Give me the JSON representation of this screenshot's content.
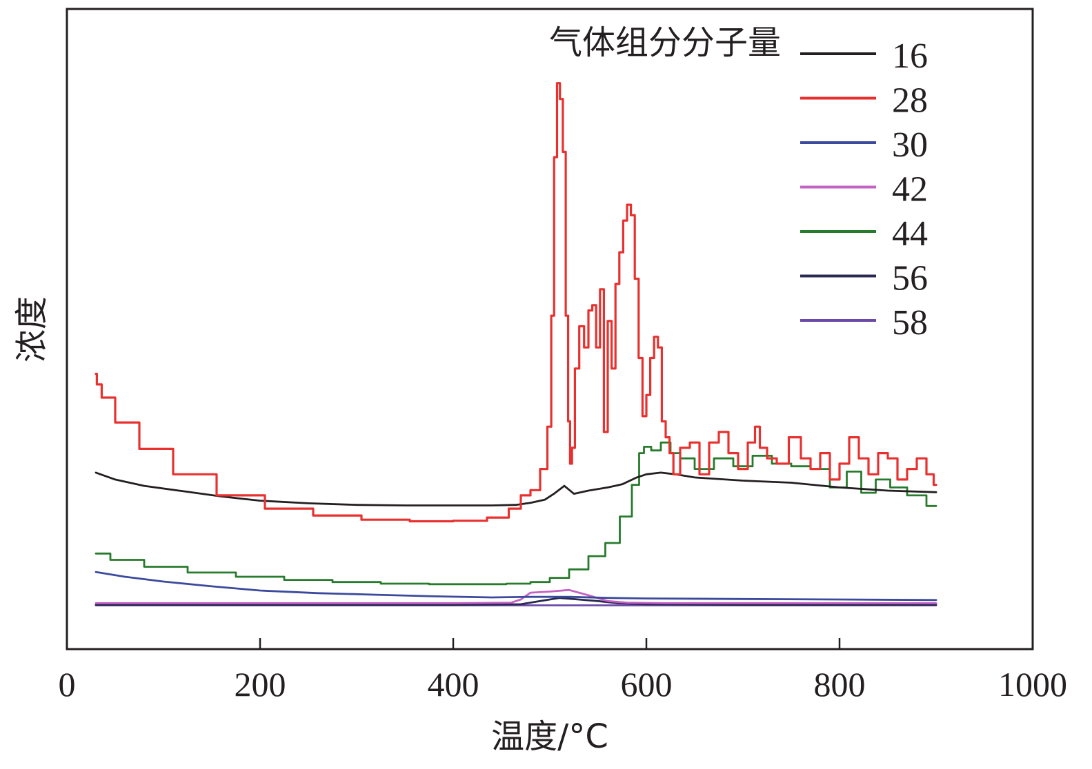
{
  "chart_data": {
    "type": "line",
    "title": "",
    "xlabel": "温度/°C",
    "ylabel": "浓度",
    "xlim": [
      0,
      1000
    ],
    "ylim": [
      0,
      100
    ],
    "xticks": [
      0,
      200,
      400,
      600,
      800,
      1000
    ],
    "xtick_labels": [
      "0",
      "200",
      "400",
      "600",
      "800",
      "1000"
    ],
    "y_tick_labels_shown": false,
    "grid": false,
    "legend": {
      "title": "气体组分分子量",
      "position": "top-right"
    },
    "series": [
      {
        "name": "16",
        "color": "#231f20",
        "x": [
          30,
          50,
          80,
          120,
          160,
          200,
          250,
          300,
          350,
          400,
          440,
          465,
          480,
          495,
          505,
          515,
          525,
          540,
          560,
          575,
          590,
          600,
          615,
          630,
          650,
          700,
          750,
          800,
          850,
          900
        ],
        "y": [
          25.3,
          24.0,
          22.8,
          21.8,
          20.8,
          20.0,
          19.5,
          19.2,
          19.1,
          19.1,
          19.1,
          19.2,
          19.6,
          20.2,
          21.4,
          22.8,
          21.3,
          21.9,
          22.5,
          23.1,
          24.4,
          25.0,
          25.3,
          25.0,
          24.4,
          23.8,
          23.4,
          22.5,
          21.9,
          21.6
        ]
      },
      {
        "name": "28",
        "color": "#e8312f",
        "x": [
          30,
          32,
          40,
          60,
          90,
          130,
          180,
          230,
          280,
          330,
          380,
          420,
          450,
          465,
          475,
          485,
          495,
          500,
          503,
          506,
          509,
          512,
          515,
          518,
          520,
          522,
          524,
          528,
          533,
          538,
          542,
          546,
          550,
          554,
          558,
          562,
          566,
          570,
          574,
          578,
          582,
          586,
          590,
          594,
          598,
          602,
          606,
          610,
          614,
          618,
          622,
          626,
          630,
          640,
          650,
          660,
          670,
          680,
          690,
          700,
          710,
          715,
          720,
          730,
          740,
          755,
          765,
          775,
          785,
          795,
          805,
          815,
          825,
          835,
          845,
          855,
          865,
          875,
          885,
          895,
          900
        ],
        "y": [
          44.0,
          42.0,
          39.5,
          34.8,
          29.8,
          25.0,
          21.0,
          18.5,
          17.2,
          16.4,
          16.1,
          16.2,
          16.8,
          18.5,
          21.0,
          22.0,
          26.0,
          34.0,
          55.0,
          85.0,
          99.0,
          96.0,
          86.0,
          55.0,
          35.0,
          27.0,
          30.0,
          45.0,
          53.0,
          49.0,
          56.0,
          57.0,
          49.0,
          60.0,
          33.0,
          54.0,
          45.0,
          61.0,
          67.0,
          73.0,
          76.0,
          74.0,
          62.0,
          47.0,
          36.0,
          40.0,
          47.0,
          51.0,
          49.0,
          35.0,
          32.0,
          29.0,
          25.0,
          30.0,
          31.0,
          25.0,
          31.0,
          33.0,
          29.0,
          26.0,
          31.0,
          34.0,
          30.0,
          28.0,
          27.0,
          32.0,
          28.0,
          26.0,
          29.0,
          24.0,
          27.0,
          32.0,
          28.0,
          25.0,
          29.0,
          28.0,
          24.0,
          26.0,
          28.0,
          25.0,
          23.0
        ]
      },
      {
        "name": "30",
        "color": "#3b4a9c",
        "x": [
          30,
          60,
          100,
          150,
          200,
          260,
          320,
          380,
          440,
          480,
          520,
          560,
          600,
          700,
          800,
          900
        ],
        "y": [
          6.5,
          5.6,
          4.7,
          3.8,
          3.0,
          2.5,
          2.2,
          1.9,
          1.7,
          1.8,
          1.8,
          1.6,
          1.5,
          1.4,
          1.3,
          1.2
        ]
      },
      {
        "name": "42",
        "color": "#c461c4",
        "x": [
          30,
          200,
          400,
          460,
          470,
          480,
          500,
          520,
          540,
          560,
          580,
          620,
          700,
          800,
          900
        ],
        "y": [
          0.6,
          0.6,
          0.6,
          0.7,
          1.3,
          2.6,
          2.8,
          3.1,
          2.1,
          1.0,
          0.7,
          0.6,
          0.6,
          0.6,
          0.6
        ]
      },
      {
        "name": "44",
        "color": "#277b2c",
        "x": [
          30,
          60,
          100,
          150,
          200,
          250,
          300,
          350,
          400,
          440,
          470,
          490,
          510,
          530,
          550,
          565,
          580,
          590,
          595,
          600,
          610,
          620,
          630,
          640,
          660,
          680,
          700,
          720,
          740,
          760,
          780,
          800,
          815,
          830,
          845,
          860,
          880,
          900
        ],
        "y": [
          10.0,
          8.8,
          7.5,
          6.4,
          5.6,
          5.0,
          4.6,
          4.3,
          4.2,
          4.2,
          4.3,
          4.6,
          5.4,
          7.0,
          9.5,
          12.0,
          17.0,
          23.0,
          29.0,
          30.2,
          29.5,
          31.0,
          29.0,
          28.0,
          26.0,
          28.0,
          26.5,
          28.5,
          27.0,
          26.5,
          26.0,
          22.5,
          25.5,
          21.5,
          24.0,
          22.5,
          21.0,
          19.0
        ]
      },
      {
        "name": "56",
        "color": "#282850",
        "x": [
          30,
          200,
          400,
          470,
          490,
          510,
          530,
          550,
          570,
          600,
          700,
          900
        ],
        "y": [
          0.3,
          0.3,
          0.3,
          0.4,
          1.0,
          1.6,
          1.3,
          1.0,
          0.6,
          0.4,
          0.3,
          0.3
        ]
      },
      {
        "name": "58",
        "color": "#6a49a8",
        "x": [
          30,
          300,
          600,
          900
        ],
        "y": [
          0.2,
          0.2,
          0.2,
          0.2
        ]
      }
    ]
  }
}
